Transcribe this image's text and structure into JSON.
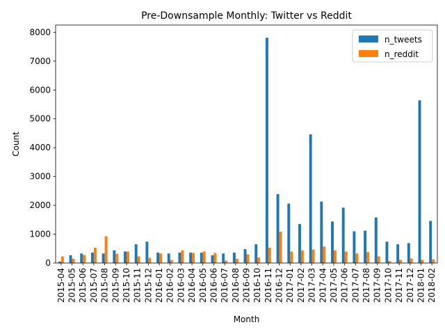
{
  "chart_data": {
    "type": "bar",
    "title": "Pre-Downsample Monthly: Twitter vs Reddit",
    "xlabel": "Month",
    "ylabel": "Count",
    "ylim": [
      0,
      8250
    ],
    "yticks": [
      0,
      1000,
      2000,
      3000,
      4000,
      5000,
      6000,
      7000,
      8000
    ],
    "grid": false,
    "legend_position": "top-right",
    "categories": [
      "2015-04",
      "2015-05",
      "2015-06",
      "2015-07",
      "2015-08",
      "2015-09",
      "2015-10",
      "2015-11",
      "2015-12",
      "2016-01",
      "2016-02",
      "2016-03",
      "2016-04",
      "2016-05",
      "2016-06",
      "2016-07",
      "2016-08",
      "2016-09",
      "2016-10",
      "2016-11",
      "2016-12",
      "2017-01",
      "2017-02",
      "2017-03",
      "2017-04",
      "2017-05",
      "2017-06",
      "2017-07",
      "2017-08",
      "2017-09",
      "2017-10",
      "2017-11",
      "2017-12",
      "2018-01",
      "2018-02"
    ],
    "series": [
      {
        "name": "n_tweets",
        "color": "#1f77b4",
        "values": [
          50,
          270,
          330,
          360,
          330,
          440,
          400,
          650,
          740,
          360,
          330,
          360,
          360,
          360,
          270,
          330,
          360,
          480,
          650,
          7810,
          2390,
          2060,
          1350,
          4460,
          2130,
          1440,
          1920,
          1100,
          1120,
          1580,
          740,
          650,
          690,
          5640,
          1460
        ]
      },
      {
        "name": "n_reddit",
        "color": "#ff7f0e",
        "values": [
          230,
          150,
          280,
          530,
          930,
          320,
          400,
          230,
          180,
          330,
          110,
          440,
          350,
          400,
          350,
          80,
          150,
          300,
          190,
          530,
          1090,
          400,
          440,
          470,
          570,
          440,
          400,
          330,
          380,
          230,
          70,
          110,
          160,
          110,
          130
        ]
      }
    ]
  }
}
